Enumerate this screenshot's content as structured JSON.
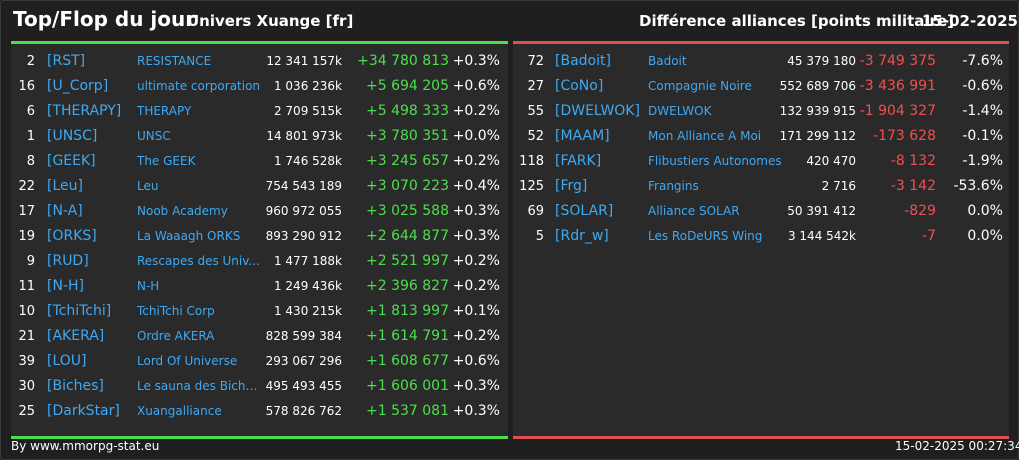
{
  "header": {
    "title": "Top/Flop du jour",
    "universe": "Univers Xuange [fr]",
    "subtitle": "Différence alliances [points militaire]",
    "date": "15-02-2025"
  },
  "top": [
    {
      "rank": "2",
      "tag": "[RST]",
      "name": "RESISTANCE",
      "points": "12 341 157k",
      "diff": "+34 780 813",
      "pct": "+0.3%"
    },
    {
      "rank": "16",
      "tag": "[U_Corp]",
      "name": "ultimate corporation",
      "points": "1 036 236k",
      "diff": "+5 694 205",
      "pct": "+0.6%"
    },
    {
      "rank": "6",
      "tag": "[THERAPY]",
      "name": "THERAPY",
      "points": "2 709 515k",
      "diff": "+5 498 333",
      "pct": "+0.2%"
    },
    {
      "rank": "1",
      "tag": "[UNSC]",
      "name": "UNSC",
      "points": "14 801 973k",
      "diff": "+3 780 351",
      "pct": "+0.0%"
    },
    {
      "rank": "8",
      "tag": "[GEEK]",
      "name": "The GEEK",
      "points": "1 746 528k",
      "diff": "+3 245 657",
      "pct": "+0.2%"
    },
    {
      "rank": "22",
      "tag": "[Leu]",
      "name": "Leu",
      "points": "754 543 189",
      "diff": "+3 070 223",
      "pct": "+0.4%"
    },
    {
      "rank": "17",
      "tag": "[N-A]",
      "name": "Noob Academy",
      "points": "960 972 055",
      "diff": "+3 025 588",
      "pct": "+0.3%"
    },
    {
      "rank": "19",
      "tag": "[ORKS]",
      "name": "La Waaagh ORKS",
      "points": "893 290 912",
      "diff": "+2 644 877",
      "pct": "+0.3%"
    },
    {
      "rank": "9",
      "tag": "[RUD]",
      "name": "Rescapes des Univ...",
      "points": "1 477 188k",
      "diff": "+2 521 997",
      "pct": "+0.2%"
    },
    {
      "rank": "11",
      "tag": "[N-H]",
      "name": "N-H",
      "points": "1 249 436k",
      "diff": "+2 396 827",
      "pct": "+0.2%"
    },
    {
      "rank": "10",
      "tag": "[TchiTchi]",
      "name": "TchiTchi Corp",
      "points": "1 430 215k",
      "diff": "+1 813 997",
      "pct": "+0.1%"
    },
    {
      "rank": "21",
      "tag": "[AKERA]",
      "name": "Ordre AKERA",
      "points": "828 599 384",
      "diff": "+1 614 791",
      "pct": "+0.2%"
    },
    {
      "rank": "39",
      "tag": "[LOU]",
      "name": "Lord Of Universe",
      "points": "293 067 296",
      "diff": "+1 608 677",
      "pct": "+0.6%"
    },
    {
      "rank": "30",
      "tag": "[Biches]",
      "name": "Le sauna des Biche...",
      "points": "495 493 455",
      "diff": "+1 606 001",
      "pct": "+0.3%"
    },
    {
      "rank": "25",
      "tag": "[DarkStar]",
      "name": "Xuangalliance",
      "points": "578 826 762",
      "diff": "+1 537 081",
      "pct": "+0.3%"
    }
  ],
  "flop": [
    {
      "rank": "72",
      "tag": "[Badoit]",
      "name": "Badoit",
      "points": "45 379 180",
      "diff": "-3 749 375",
      "pct": "-7.6%"
    },
    {
      "rank": "27",
      "tag": "[CoNo]",
      "name": "Compagnie Noire",
      "points": "552 689 706",
      "diff": "-3 436 991",
      "pct": "-0.6%"
    },
    {
      "rank": "55",
      "tag": "[DWELWOK]",
      "name": "DWELWOK",
      "points": "132 939 915",
      "diff": "-1 904 327",
      "pct": "-1.4%"
    },
    {
      "rank": "52",
      "tag": "[MAAM]",
      "name": "Mon Alliance A Moi",
      "points": "171 299 112",
      "diff": "-173 628",
      "pct": "-0.1%"
    },
    {
      "rank": "118",
      "tag": "[FARK]",
      "name": "Flibustiers Autonomes",
      "points": "420 470",
      "diff": "-8 132",
      "pct": "-1.9%"
    },
    {
      "rank": "125",
      "tag": "[Frg]",
      "name": "Frangins",
      "points": "2 716",
      "diff": "-3 142",
      "pct": "-53.6%"
    },
    {
      "rank": "69",
      "tag": "[SOLAR]",
      "name": "Alliance SOLAR",
      "points": "50 391 412",
      "diff": "-829",
      "pct": "0.0%"
    },
    {
      "rank": "5",
      "tag": "[Rdr_w]",
      "name": "Les RoDeURS Wing",
      "points": "3 144 542k",
      "diff": "-7",
      "pct": "0.0%"
    }
  ],
  "footer": {
    "source": "By www.mmorpg-stat.eu",
    "timestamp": "15-02-2025 00:27:34"
  },
  "colors": {
    "up": "#4be04b",
    "down": "#f05050",
    "link": "#3fa9f5"
  }
}
